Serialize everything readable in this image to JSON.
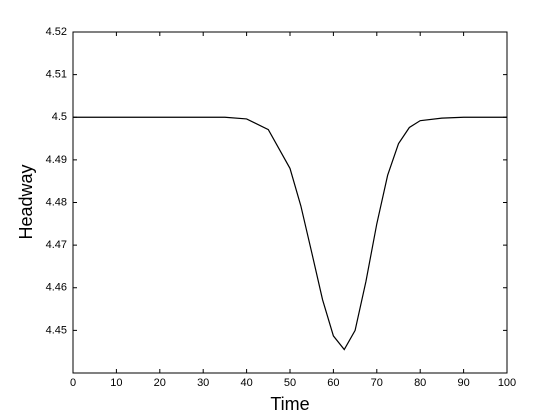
{
  "chart_data": {
    "type": "line",
    "x_label": "Time",
    "y_label": "Headway",
    "x": [
      0,
      10,
      20,
      30,
      35,
      40,
      45,
      50,
      52.5,
      55,
      57.5,
      60,
      62.5,
      65,
      67.5,
      70,
      72.5,
      75,
      77.5,
      80,
      85,
      90,
      100
    ],
    "series": [
      {
        "color": "#000000",
        "values": [
          4.5,
          4.5,
          4.5,
          4.5,
          4.5,
          4.4996,
          4.4971,
          4.488,
          4.4792,
          4.4683,
          4.4572,
          4.4487,
          4.4455,
          4.45,
          4.4615,
          4.475,
          4.4864,
          4.4938,
          4.4976,
          4.4992,
          4.4998,
          4.5,
          4.5
        ]
      }
    ],
    "xlim": [
      0,
      100
    ],
    "xticks": [
      0,
      10,
      20,
      30,
      40,
      50,
      60,
      70,
      80,
      90,
      100
    ],
    "ylim": [
      4.44,
      4.52
    ],
    "yticks": [
      4.45,
      4.46,
      4.47,
      4.48,
      4.49,
      4.5,
      4.51,
      4.52
    ],
    "grid": false
  }
}
